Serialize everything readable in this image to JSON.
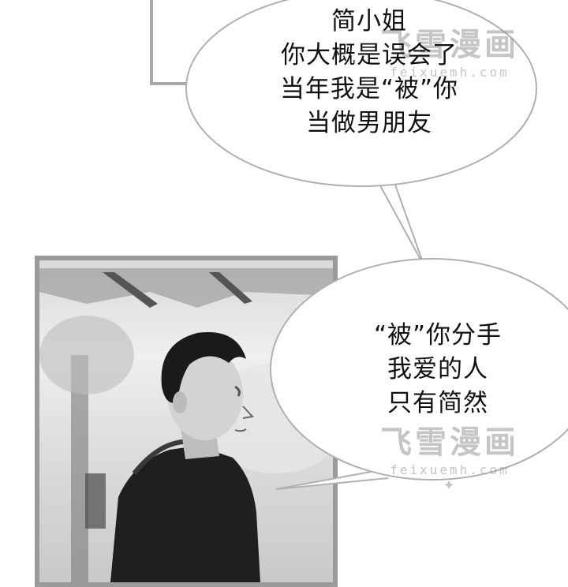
{
  "speech_bubble_1": {
    "lines": [
      "简小姐",
      "你大概是误会了",
      "当年我是“被”你",
      "当做男朋友"
    ]
  },
  "speech_bubble_2": {
    "lines": [
      "“被”你分手",
      "我爱的人",
      "只有简然"
    ]
  },
  "watermark": {
    "logo_text": "飞雪漫画",
    "url": "feixuemh.com",
    "ornament": "✦"
  },
  "colors": {
    "panel_border": "#9a9a9a",
    "bubble_border": "#b0b0b0",
    "watermark": "#999999"
  }
}
